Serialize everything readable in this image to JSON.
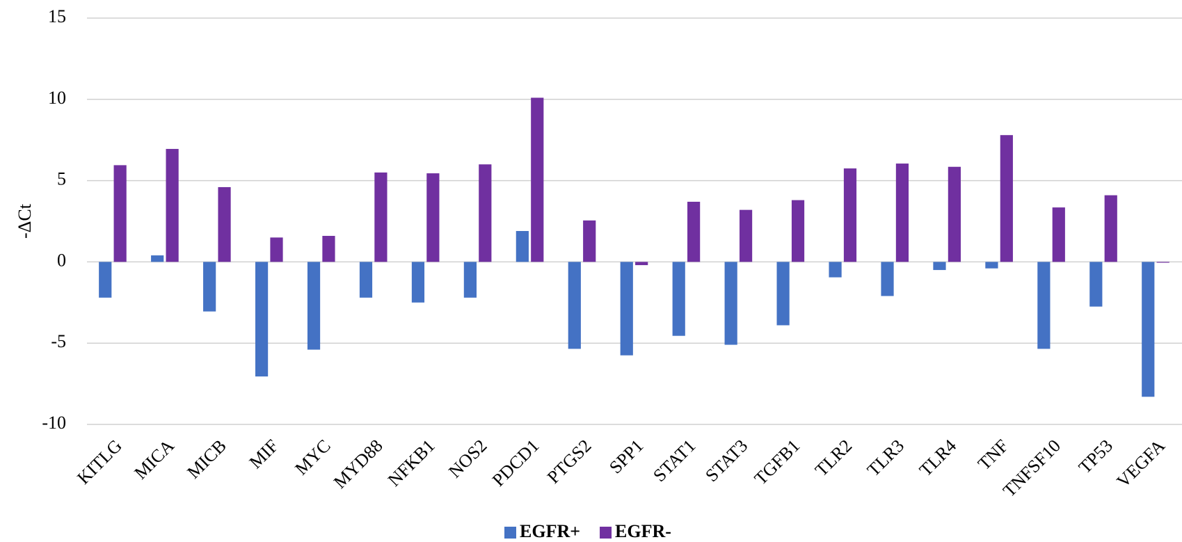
{
  "chart_data": {
    "type": "bar",
    "ylabel": "-ΔCt",
    "categories": [
      "KITLG",
      "MICA",
      "MICB",
      "MIF",
      "MYC",
      "MYD88",
      "NFKB1",
      "NOS2",
      "PDCD1",
      "PTGS2",
      "SPP1",
      "STAT1",
      "STAT3",
      "TGFB1",
      "TLR2",
      "TLR3",
      "TLR4",
      "TNF",
      "TNFSF10",
      "TP53",
      "VEGFA"
    ],
    "series": [
      {
        "name": "EGFR+",
        "color": "#4472c4",
        "values": [
          -2.2,
          0.4,
          -3.05,
          -7.05,
          -5.4,
          -2.2,
          -2.5,
          -2.2,
          1.9,
          -5.35,
          -5.75,
          -4.55,
          -5.1,
          -3.9,
          -0.95,
          -2.1,
          -0.5,
          -0.4,
          -5.35,
          -2.75,
          -8.3
        ]
      },
      {
        "name": "EGFR-",
        "color": "#7030a0",
        "values": [
          5.95,
          6.95,
          4.6,
          1.5,
          1.6,
          5.5,
          5.45,
          6.0,
          10.1,
          2.55,
          -0.2,
          3.7,
          3.2,
          3.8,
          5.75,
          6.05,
          5.85,
          7.8,
          3.35,
          4.1,
          -0.05
        ]
      }
    ],
    "ylim": [
      -10,
      15
    ],
    "yticks": [
      -10,
      -5,
      0,
      5,
      10,
      15
    ],
    "grid": true,
    "legend": "bottom"
  }
}
